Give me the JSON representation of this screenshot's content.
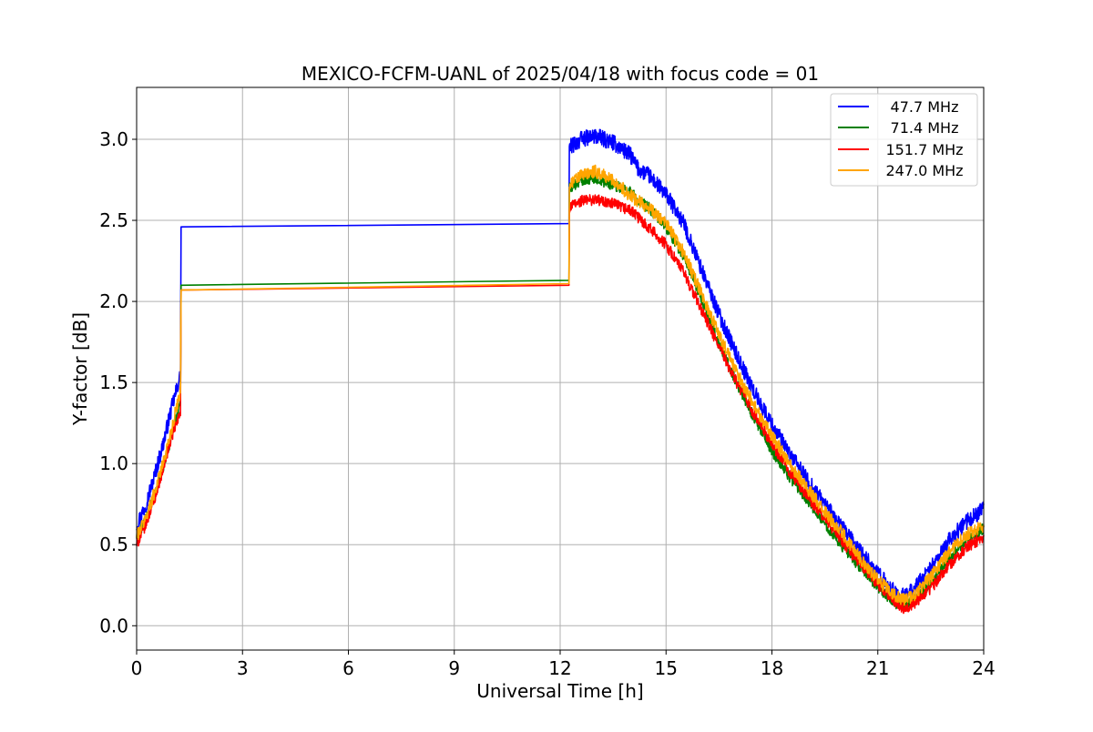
{
  "chart_data": {
    "type": "line",
    "title": "MEXICO-FCFM-UANL of 2025/04/18 with focus code = 01",
    "xlabel": "Universal Time [h]",
    "ylabel": "Y-factor [dB]",
    "xlim": [
      0,
      24
    ],
    "ylim": [
      -0.15,
      3.32
    ],
    "xticks": [
      0,
      3,
      6,
      9,
      12,
      15,
      18,
      21,
      24
    ],
    "xtick_labels": [
      "0",
      "3",
      "6",
      "9",
      "12",
      "15",
      "18",
      "21",
      "24"
    ],
    "yticks": [
      0.0,
      0.5,
      1.0,
      1.5,
      2.0,
      2.5,
      3.0
    ],
    "ytick_labels": [
      "0.0",
      "0.5",
      "1.0",
      "1.5",
      "2.0",
      "2.5",
      "3.0"
    ],
    "grid": true,
    "legend_position": "top-right",
    "series": [
      {
        "name": "47.7 MHz",
        "color": "#0000ff",
        "noise": 0.05,
        "points": [
          [
            0,
            0.62
          ],
          [
            0.25,
            0.74
          ],
          [
            0.5,
            0.92
          ],
          [
            0.75,
            1.12
          ],
          [
            1.0,
            1.35
          ],
          [
            1.25,
            1.55
          ],
          [
            1.26,
            2.46
          ],
          [
            12.25,
            2.48
          ],
          [
            12.26,
            2.95
          ],
          [
            12.6,
            3.0
          ],
          [
            13.0,
            3.02
          ],
          [
            13.5,
            2.98
          ],
          [
            14.0,
            2.9
          ],
          [
            14.2,
            2.82
          ],
          [
            14.5,
            2.78
          ],
          [
            15.0,
            2.66
          ],
          [
            15.5,
            2.48
          ],
          [
            16.0,
            2.2
          ],
          [
            16.5,
            1.92
          ],
          [
            17.0,
            1.67
          ],
          [
            17.5,
            1.44
          ],
          [
            18.0,
            1.24
          ],
          [
            18.5,
            1.06
          ],
          [
            19.0,
            0.9
          ],
          [
            19.5,
            0.75
          ],
          [
            20.0,
            0.6
          ],
          [
            20.5,
            0.46
          ],
          [
            21.0,
            0.32
          ],
          [
            21.5,
            0.2
          ],
          [
            21.7,
            0.18
          ],
          [
            22.0,
            0.22
          ],
          [
            22.5,
            0.35
          ],
          [
            23.0,
            0.52
          ],
          [
            23.5,
            0.64
          ],
          [
            24.0,
            0.72
          ]
        ]
      },
      {
        "name": "71.4 MHz",
        "color": "#008000",
        "noise": 0.035,
        "points": [
          [
            0,
            0.55
          ],
          [
            0.25,
            0.65
          ],
          [
            0.5,
            0.8
          ],
          [
            0.75,
            0.98
          ],
          [
            1.0,
            1.18
          ],
          [
            1.25,
            1.4
          ],
          [
            1.26,
            2.1
          ],
          [
            12.25,
            2.13
          ],
          [
            12.26,
            2.7
          ],
          [
            12.6,
            2.75
          ],
          [
            13.0,
            2.76
          ],
          [
            13.5,
            2.72
          ],
          [
            14.0,
            2.68
          ],
          [
            14.2,
            2.62
          ],
          [
            14.5,
            2.58
          ],
          [
            15.0,
            2.46
          ],
          [
            15.5,
            2.28
          ],
          [
            16.0,
            2.02
          ],
          [
            16.5,
            1.74
          ],
          [
            17.0,
            1.5
          ],
          [
            17.5,
            1.28
          ],
          [
            18.0,
            1.08
          ],
          [
            18.5,
            0.92
          ],
          [
            19.0,
            0.78
          ],
          [
            19.5,
            0.63
          ],
          [
            20.0,
            0.49
          ],
          [
            20.5,
            0.36
          ],
          [
            21.0,
            0.24
          ],
          [
            21.5,
            0.14
          ],
          [
            21.7,
            0.12
          ],
          [
            22.0,
            0.15
          ],
          [
            22.5,
            0.26
          ],
          [
            23.0,
            0.41
          ],
          [
            23.5,
            0.52
          ],
          [
            24.0,
            0.6
          ]
        ]
      },
      {
        "name": "151.7 MHz",
        "color": "#ff0000",
        "noise": 0.035,
        "points": [
          [
            0,
            0.5
          ],
          [
            0.25,
            0.62
          ],
          [
            0.5,
            0.78
          ],
          [
            0.75,
            0.97
          ],
          [
            1.0,
            1.17
          ],
          [
            1.25,
            1.32
          ],
          [
            1.26,
            2.07
          ],
          [
            12.25,
            2.1
          ],
          [
            12.26,
            2.58
          ],
          [
            12.6,
            2.62
          ],
          [
            13.0,
            2.63
          ],
          [
            13.5,
            2.6
          ],
          [
            14.0,
            2.56
          ],
          [
            14.2,
            2.52
          ],
          [
            14.5,
            2.46
          ],
          [
            15.0,
            2.35
          ],
          [
            15.5,
            2.18
          ],
          [
            16.0,
            1.95
          ],
          [
            16.5,
            1.72
          ],
          [
            17.0,
            1.5
          ],
          [
            17.5,
            1.3
          ],
          [
            18.0,
            1.12
          ],
          [
            18.5,
            0.95
          ],
          [
            19.0,
            0.8
          ],
          [
            19.5,
            0.66
          ],
          [
            20.0,
            0.52
          ],
          [
            20.5,
            0.38
          ],
          [
            21.0,
            0.26
          ],
          [
            21.5,
            0.15
          ],
          [
            21.7,
            0.11
          ],
          [
            22.0,
            0.13
          ],
          [
            22.5,
            0.23
          ],
          [
            23.0,
            0.37
          ],
          [
            23.5,
            0.48
          ],
          [
            24.0,
            0.55
          ]
        ]
      },
      {
        "name": "247.0 MHz",
        "color": "#ffa500",
        "noise": 0.04,
        "points": [
          [
            0,
            0.55
          ],
          [
            0.25,
            0.66
          ],
          [
            0.5,
            0.82
          ],
          [
            0.75,
            1.0
          ],
          [
            1.0,
            1.22
          ],
          [
            1.25,
            1.46
          ],
          [
            1.26,
            2.07
          ],
          [
            12.25,
            2.11
          ],
          [
            12.26,
            2.72
          ],
          [
            12.6,
            2.78
          ],
          [
            13.0,
            2.8
          ],
          [
            13.5,
            2.75
          ],
          [
            14.0,
            2.65
          ],
          [
            14.2,
            2.62
          ],
          [
            14.5,
            2.58
          ],
          [
            15.0,
            2.48
          ],
          [
            15.5,
            2.3
          ],
          [
            16.0,
            2.05
          ],
          [
            16.5,
            1.8
          ],
          [
            17.0,
            1.56
          ],
          [
            17.5,
            1.36
          ],
          [
            18.0,
            1.17
          ],
          [
            18.5,
            1.0
          ],
          [
            19.0,
            0.85
          ],
          [
            19.5,
            0.7
          ],
          [
            20.0,
            0.57
          ],
          [
            20.5,
            0.42
          ],
          [
            21.0,
            0.28
          ],
          [
            21.5,
            0.18
          ],
          [
            21.7,
            0.16
          ],
          [
            22.0,
            0.18
          ],
          [
            22.5,
            0.3
          ],
          [
            23.0,
            0.45
          ],
          [
            23.5,
            0.56
          ],
          [
            24.0,
            0.62
          ]
        ]
      }
    ]
  }
}
